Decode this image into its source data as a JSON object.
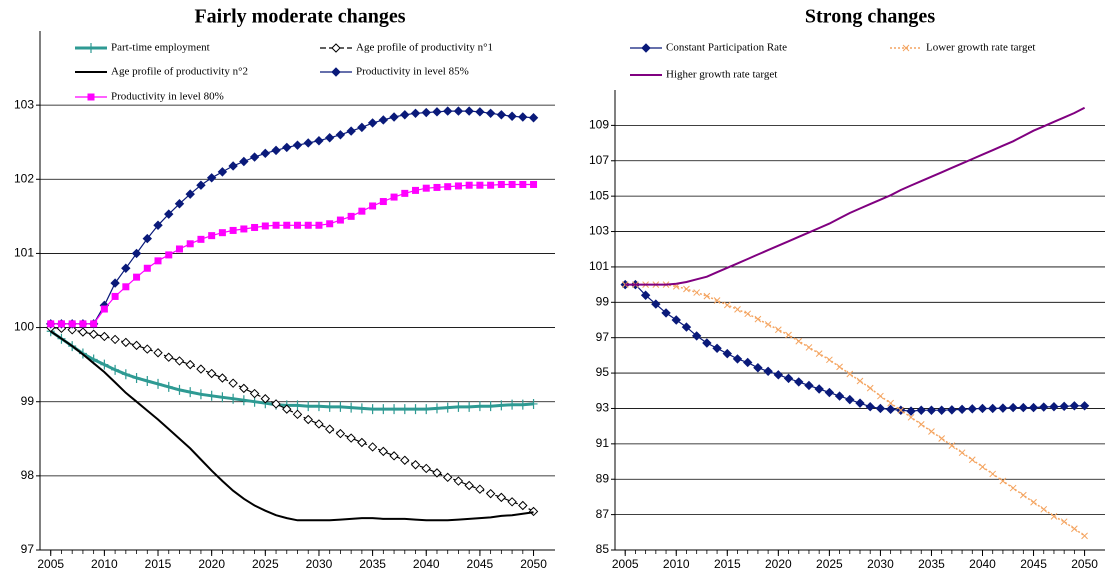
{
  "chart_data": [
    {
      "type": "line",
      "title": "Fairly moderate changes",
      "x": [
        2005,
        2006,
        2007,
        2008,
        2009,
        2010,
        2011,
        2012,
        2013,
        2014,
        2015,
        2016,
        2017,
        2018,
        2019,
        2020,
        2021,
        2022,
        2023,
        2024,
        2025,
        2026,
        2027,
        2028,
        2029,
        2030,
        2031,
        2032,
        2033,
        2034,
        2035,
        2036,
        2037,
        2038,
        2039,
        2040,
        2041,
        2042,
        2043,
        2044,
        2045,
        2046,
        2047,
        2048,
        2049,
        2050
      ],
      "xlim": [
        2004,
        2052
      ],
      "xticks": [
        2005,
        2010,
        2015,
        2020,
        2025,
        2030,
        2035,
        2040,
        2045,
        2050
      ],
      "ylim": [
        97,
        104
      ],
      "yticks": [
        97,
        98,
        99,
        100,
        101,
        102,
        103
      ],
      "grid": true,
      "series": [
        {
          "name": "Part-time employment",
          "color": "#2e9a93",
          "marker": "plus",
          "dash": "solid",
          "width": 3,
          "values": [
            99.95,
            99.85,
            99.75,
            99.65,
            99.57,
            99.5,
            99.43,
            99.37,
            99.32,
            99.28,
            99.24,
            99.2,
            99.16,
            99.13,
            99.1,
            99.08,
            99.06,
            99.04,
            99.02,
            99.0,
            98.98,
            98.96,
            98.95,
            98.95,
            98.94,
            98.94,
            98.93,
            98.93,
            98.92,
            98.91,
            98.9,
            98.9,
            98.9,
            98.9,
            98.9,
            98.9,
            98.91,
            98.92,
            98.93,
            98.93,
            98.94,
            98.94,
            98.95,
            98.96,
            98.96,
            98.97
          ]
        },
        {
          "name": "Age profile of productivity n°1",
          "color": "#000000",
          "marker": "diamond-open",
          "dash": "dashed",
          "width": 1.2,
          "values": [
            100.0,
            99.99,
            99.97,
            99.94,
            99.91,
            99.88,
            99.84,
            99.8,
            99.76,
            99.71,
            99.66,
            99.6,
            99.55,
            99.5,
            99.44,
            99.38,
            99.32,
            99.25,
            99.18,
            99.11,
            99.04,
            98.97,
            98.9,
            98.83,
            98.76,
            98.7,
            98.63,
            98.57,
            98.51,
            98.45,
            98.39,
            98.33,
            98.27,
            98.21,
            98.15,
            98.1,
            98.04,
            97.98,
            97.93,
            97.87,
            97.82,
            97.76,
            97.71,
            97.65,
            97.6,
            97.52
          ]
        },
        {
          "name": "Age profile of productivity n°2",
          "color": "#000000",
          "marker": "none",
          "dash": "solid",
          "width": 2,
          "values": [
            99.95,
            99.85,
            99.75,
            99.64,
            99.52,
            99.4,
            99.26,
            99.12,
            99.0,
            98.88,
            98.76,
            98.63,
            98.5,
            98.37,
            98.22,
            98.07,
            97.93,
            97.8,
            97.69,
            97.6,
            97.53,
            97.47,
            97.43,
            97.4,
            97.4,
            97.4,
            97.4,
            97.41,
            97.42,
            97.43,
            97.43,
            97.42,
            97.42,
            97.42,
            97.41,
            97.4,
            97.4,
            97.4,
            97.41,
            97.42,
            97.43,
            97.44,
            97.46,
            97.47,
            97.49,
            97.51
          ]
        },
        {
          "name": "Productivity in level 85%",
          "color": "#0a1a7a",
          "marker": "diamond",
          "dash": "solid",
          "width": 1.2,
          "values": [
            100.05,
            100.05,
            100.05,
            100.05,
            100.05,
            100.3,
            100.6,
            100.8,
            101.0,
            101.2,
            101.38,
            101.53,
            101.67,
            101.8,
            101.92,
            102.02,
            102.1,
            102.18,
            102.24,
            102.3,
            102.35,
            102.39,
            102.43,
            102.46,
            102.49,
            102.52,
            102.56,
            102.6,
            102.65,
            102.7,
            102.76,
            102.8,
            102.84,
            102.87,
            102.89,
            102.9,
            102.91,
            102.92,
            102.92,
            102.92,
            102.91,
            102.89,
            102.87,
            102.85,
            102.84,
            102.83
          ]
        },
        {
          "name": "Productivity in level 80%",
          "color": "#ff00ff",
          "marker": "square",
          "dash": "solid",
          "width": 1.2,
          "values": [
            100.05,
            100.05,
            100.05,
            100.05,
            100.05,
            100.25,
            100.42,
            100.55,
            100.68,
            100.8,
            100.9,
            100.98,
            101.06,
            101.13,
            101.19,
            101.24,
            101.28,
            101.31,
            101.33,
            101.35,
            101.37,
            101.38,
            101.38,
            101.38,
            101.38,
            101.38,
            101.4,
            101.45,
            101.5,
            101.57,
            101.64,
            101.7,
            101.76,
            101.81,
            101.85,
            101.88,
            101.89,
            101.9,
            101.91,
            101.92,
            101.92,
            101.92,
            101.93,
            101.93,
            101.93,
            101.93
          ]
        }
      ]
    },
    {
      "type": "line",
      "title": "Strong changes",
      "x": [
        2005,
        2006,
        2007,
        2008,
        2009,
        2010,
        2011,
        2012,
        2013,
        2014,
        2015,
        2016,
        2017,
        2018,
        2019,
        2020,
        2021,
        2022,
        2023,
        2024,
        2025,
        2026,
        2027,
        2028,
        2029,
        2030,
        2031,
        2032,
        2033,
        2034,
        2035,
        2036,
        2037,
        2038,
        2039,
        2040,
        2041,
        2042,
        2043,
        2044,
        2045,
        2046,
        2047,
        2048,
        2049,
        2050
      ],
      "xlim": [
        2004,
        2052
      ],
      "xticks": [
        2005,
        2010,
        2015,
        2020,
        2025,
        2030,
        2035,
        2040,
        2045,
        2050
      ],
      "ylim": [
        85,
        111
      ],
      "yticks": [
        85,
        87,
        89,
        91,
        93,
        95,
        97,
        99,
        101,
        103,
        105,
        107,
        109
      ],
      "grid": true,
      "series": [
        {
          "name": "Constant Participation Rate",
          "color": "#0a1a7a",
          "marker": "diamond",
          "dash": "solid",
          "width": 1.2,
          "values": [
            100.0,
            100.0,
            99.4,
            98.9,
            98.4,
            98.0,
            97.6,
            97.1,
            96.7,
            96.4,
            96.1,
            95.8,
            95.6,
            95.3,
            95.1,
            94.9,
            94.7,
            94.5,
            94.3,
            94.1,
            93.9,
            93.7,
            93.5,
            93.3,
            93.1,
            93.0,
            92.95,
            92.9,
            92.85,
            92.9,
            92.9,
            92.9,
            92.92,
            92.95,
            92.98,
            93.0,
            93.0,
            93.02,
            93.05,
            93.05,
            93.05,
            93.08,
            93.1,
            93.12,
            93.15,
            93.15
          ]
        },
        {
          "name": "Lower growth rate target",
          "color": "#f4a460",
          "marker": "cross",
          "dash": "dotted",
          "width": 1.5,
          "values": [
            100.0,
            100.0,
            100.0,
            100.0,
            100.0,
            99.9,
            99.75,
            99.55,
            99.35,
            99.1,
            98.85,
            98.6,
            98.35,
            98.05,
            97.75,
            97.45,
            97.15,
            96.8,
            96.45,
            96.1,
            95.75,
            95.35,
            94.95,
            94.55,
            94.15,
            93.7,
            93.3,
            92.9,
            92.5,
            92.1,
            91.7,
            91.3,
            90.9,
            90.5,
            90.1,
            89.7,
            89.3,
            88.9,
            88.5,
            88.1,
            87.7,
            87.3,
            86.9,
            86.6,
            86.2,
            85.8
          ]
        },
        {
          "name": "Higher growth rate target",
          "color": "#800080",
          "marker": "none",
          "dash": "solid",
          "width": 2,
          "values": [
            100.0,
            100.0,
            100.0,
            100.0,
            100.0,
            100.05,
            100.15,
            100.3,
            100.45,
            100.7,
            100.95,
            101.2,
            101.45,
            101.7,
            101.95,
            102.2,
            102.45,
            102.7,
            102.95,
            103.2,
            103.45,
            103.75,
            104.05,
            104.3,
            104.55,
            104.8,
            105.05,
            105.35,
            105.6,
            105.85,
            106.1,
            106.35,
            106.6,
            106.85,
            107.1,
            107.35,
            107.6,
            107.85,
            108.1,
            108.4,
            108.7,
            108.95,
            109.2,
            109.45,
            109.7,
            110.0
          ]
        }
      ]
    }
  ]
}
